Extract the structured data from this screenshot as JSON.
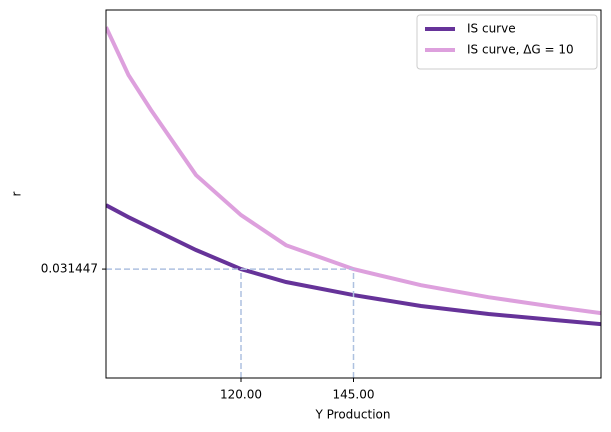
{
  "chart_data": {
    "type": "line",
    "x_label": "Y Production",
    "y_label": "r",
    "x": [
      90,
      95,
      100,
      110,
      120,
      130,
      145,
      160,
      175,
      190,
      200
    ],
    "series": [
      {
        "name": "IS curve",
        "color": "#663399",
        "values": [
          0.0554,
          0.0509,
          0.0468,
          0.0386,
          0.031447,
          0.0266,
          0.0217,
          0.0176,
          0.0146,
          0.0123,
          0.0108
        ]
      },
      {
        "name": "IS curve, ΔG = 10",
        "color": "#dda0dd",
        "values": [
          0.1222,
          0.1042,
          0.0911,
          0.0667,
          0.0517,
          0.0404,
          0.031447,
          0.0254,
          0.0209,
          0.0172,
          0.0149
        ]
      }
    ],
    "xlim": [
      90,
      200
    ],
    "ylim": [
      -0.0094,
      0.1286
    ],
    "xticks": [
      {
        "value": 120,
        "label": "120.00"
      },
      {
        "value": 145,
        "label": "145.00"
      }
    ],
    "yticks": [
      0.031447
    ],
    "reference_color": "#aec1e0",
    "legend": "upper right",
    "grid": false
  }
}
